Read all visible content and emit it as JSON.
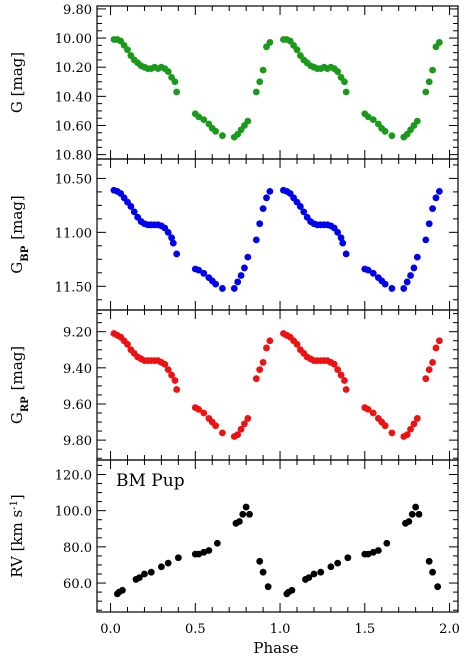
{
  "chart_data": {
    "type": "scatter",
    "star_name": "BM Pup",
    "xlabel": "Phase",
    "xlim": [
      -0.08,
      2.05
    ],
    "xticks": [
      0.0,
      0.5,
      1.0,
      1.5,
      2.0
    ],
    "xtick_labels": [
      "0.0",
      "0.5",
      "1.0",
      "1.5",
      "2.0"
    ],
    "panels": [
      {
        "key": "G",
        "ylabel": "G  [mag]",
        "ylabel_sub": "",
        "color": "#1a9a1a",
        "y_inverted": true,
        "ylim": [
          9.78,
          10.83
        ],
        "yticks": [
          9.8,
          10.0,
          10.2,
          10.4,
          10.6,
          10.8
        ],
        "ytick_labels": [
          "9.80",
          "10.00",
          "10.20",
          "10.40",
          "10.60",
          "10.80"
        ],
        "points": [
          [
            0.02,
            10.01
          ],
          [
            0.04,
            10.01
          ],
          [
            0.06,
            10.02
          ],
          [
            0.08,
            10.05
          ],
          [
            0.1,
            10.08
          ],
          [
            0.12,
            10.12
          ],
          [
            0.14,
            10.15
          ],
          [
            0.16,
            10.17
          ],
          [
            0.18,
            10.19
          ],
          [
            0.2,
            10.2
          ],
          [
            0.22,
            10.21
          ],
          [
            0.24,
            10.21
          ],
          [
            0.26,
            10.2
          ],
          [
            0.28,
            10.21
          ],
          [
            0.3,
            10.2
          ],
          [
            0.32,
            10.21
          ],
          [
            0.34,
            10.23
          ],
          [
            0.36,
            10.27
          ],
          [
            0.38,
            10.3
          ],
          [
            0.39,
            10.37
          ],
          [
            0.5,
            10.52
          ],
          [
            0.52,
            10.54
          ],
          [
            0.55,
            10.56
          ],
          [
            0.58,
            10.59
          ],
          [
            0.6,
            10.62
          ],
          [
            0.62,
            10.64
          ],
          [
            0.66,
            10.67
          ],
          [
            0.73,
            10.68
          ],
          [
            0.75,
            10.66
          ],
          [
            0.77,
            10.63
          ],
          [
            0.79,
            10.6
          ],
          [
            0.81,
            10.57
          ],
          [
            0.86,
            10.37
          ],
          [
            0.88,
            10.3
          ],
          [
            0.9,
            10.22
          ],
          [
            0.92,
            10.06
          ],
          [
            0.94,
            10.03
          ]
        ]
      },
      {
        "key": "GBP",
        "ylabel": "G",
        "ylabel_sub": "BP",
        "ylabel_unit": "[mag]",
        "color": "#0000f0",
        "y_inverted": true,
        "ylim": [
          10.32,
          11.72
        ],
        "yticks": [
          10.5,
          11.0,
          11.5
        ],
        "ytick_labels": [
          "10.50",
          "11.00",
          "11.50"
        ],
        "points": [
          [
            0.02,
            10.61
          ],
          [
            0.04,
            10.62
          ],
          [
            0.06,
            10.64
          ],
          [
            0.08,
            10.68
          ],
          [
            0.1,
            10.72
          ],
          [
            0.12,
            10.76
          ],
          [
            0.14,
            10.81
          ],
          [
            0.16,
            10.86
          ],
          [
            0.18,
            10.9
          ],
          [
            0.2,
            10.92
          ],
          [
            0.22,
            10.93
          ],
          [
            0.24,
            10.93
          ],
          [
            0.26,
            10.93
          ],
          [
            0.28,
            10.93
          ],
          [
            0.3,
            10.94
          ],
          [
            0.32,
            10.96
          ],
          [
            0.34,
            11.0
          ],
          [
            0.36,
            11.05
          ],
          [
            0.37,
            11.1
          ],
          [
            0.39,
            11.2
          ],
          [
            0.5,
            11.34
          ],
          [
            0.52,
            11.35
          ],
          [
            0.55,
            11.38
          ],
          [
            0.58,
            11.42
          ],
          [
            0.6,
            11.45
          ],
          [
            0.62,
            11.48
          ],
          [
            0.66,
            11.52
          ],
          [
            0.73,
            11.52
          ],
          [
            0.75,
            11.46
          ],
          [
            0.77,
            11.4
          ],
          [
            0.79,
            11.33
          ],
          [
            0.81,
            11.23
          ],
          [
            0.86,
            11.07
          ],
          [
            0.88,
            10.92
          ],
          [
            0.9,
            10.78
          ],
          [
            0.92,
            10.68
          ],
          [
            0.94,
            10.62
          ]
        ]
      },
      {
        "key": "GRP",
        "ylabel": "G",
        "ylabel_sub": "RP",
        "ylabel_unit": "[mag]",
        "color": "#ee1111",
        "y_inverted": true,
        "ylim": [
          9.08,
          9.91
        ],
        "yticks": [
          9.2,
          9.4,
          9.6,
          9.8
        ],
        "ytick_labels": [
          "9.20",
          "9.40",
          "9.60",
          "9.80"
        ],
        "points": [
          [
            0.02,
            9.21
          ],
          [
            0.04,
            9.22
          ],
          [
            0.06,
            9.23
          ],
          [
            0.08,
            9.25
          ],
          [
            0.1,
            9.27
          ],
          [
            0.12,
            9.3
          ],
          [
            0.14,
            9.32
          ],
          [
            0.16,
            9.34
          ],
          [
            0.18,
            9.35
          ],
          [
            0.2,
            9.36
          ],
          [
            0.22,
            9.36
          ],
          [
            0.24,
            9.36
          ],
          [
            0.26,
            9.36
          ],
          [
            0.28,
            9.36
          ],
          [
            0.3,
            9.37
          ],
          [
            0.32,
            9.38
          ],
          [
            0.34,
            9.41
          ],
          [
            0.36,
            9.44
          ],
          [
            0.38,
            9.47
          ],
          [
            0.39,
            9.52
          ],
          [
            0.5,
            9.62
          ],
          [
            0.52,
            9.63
          ],
          [
            0.55,
            9.65
          ],
          [
            0.58,
            9.68
          ],
          [
            0.6,
            9.7
          ],
          [
            0.62,
            9.72
          ],
          [
            0.66,
            9.76
          ],
          [
            0.73,
            9.78
          ],
          [
            0.75,
            9.77
          ],
          [
            0.77,
            9.74
          ],
          [
            0.79,
            9.71
          ],
          [
            0.81,
            9.68
          ],
          [
            0.86,
            9.46
          ],
          [
            0.88,
            9.41
          ],
          [
            0.9,
            9.37
          ],
          [
            0.92,
            9.29
          ],
          [
            0.94,
            9.25
          ]
        ]
      },
      {
        "key": "RV",
        "ylabel": "RV  [km s",
        "ylabel_sup": "-1",
        "ylabel_tail": "]",
        "color": "#000000",
        "y_inverted": false,
        "ylim": [
          44,
          128
        ],
        "yticks": [
          60,
          80,
          100,
          120
        ],
        "ytick_labels": [
          "60.0",
          "80.0",
          "100.0",
          "120.0"
        ],
        "points": [
          [
            0.04,
            54
          ],
          [
            0.05,
            55
          ],
          [
            0.07,
            56
          ],
          [
            0.15,
            62
          ],
          [
            0.17,
            63
          ],
          [
            0.2,
            65
          ],
          [
            0.24,
            66
          ],
          [
            0.3,
            69
          ],
          [
            0.34,
            71
          ],
          [
            0.4,
            74
          ],
          [
            0.5,
            76
          ],
          [
            0.52,
            76
          ],
          [
            0.55,
            77
          ],
          [
            0.58,
            78
          ],
          [
            0.63,
            82
          ],
          [
            0.74,
            93
          ],
          [
            0.76,
            94
          ],
          [
            0.78,
            98
          ],
          [
            0.8,
            102
          ],
          [
            0.82,
            98
          ],
          [
            0.88,
            72
          ],
          [
            0.9,
            66
          ],
          [
            0.93,
            58
          ]
        ]
      }
    ]
  }
}
